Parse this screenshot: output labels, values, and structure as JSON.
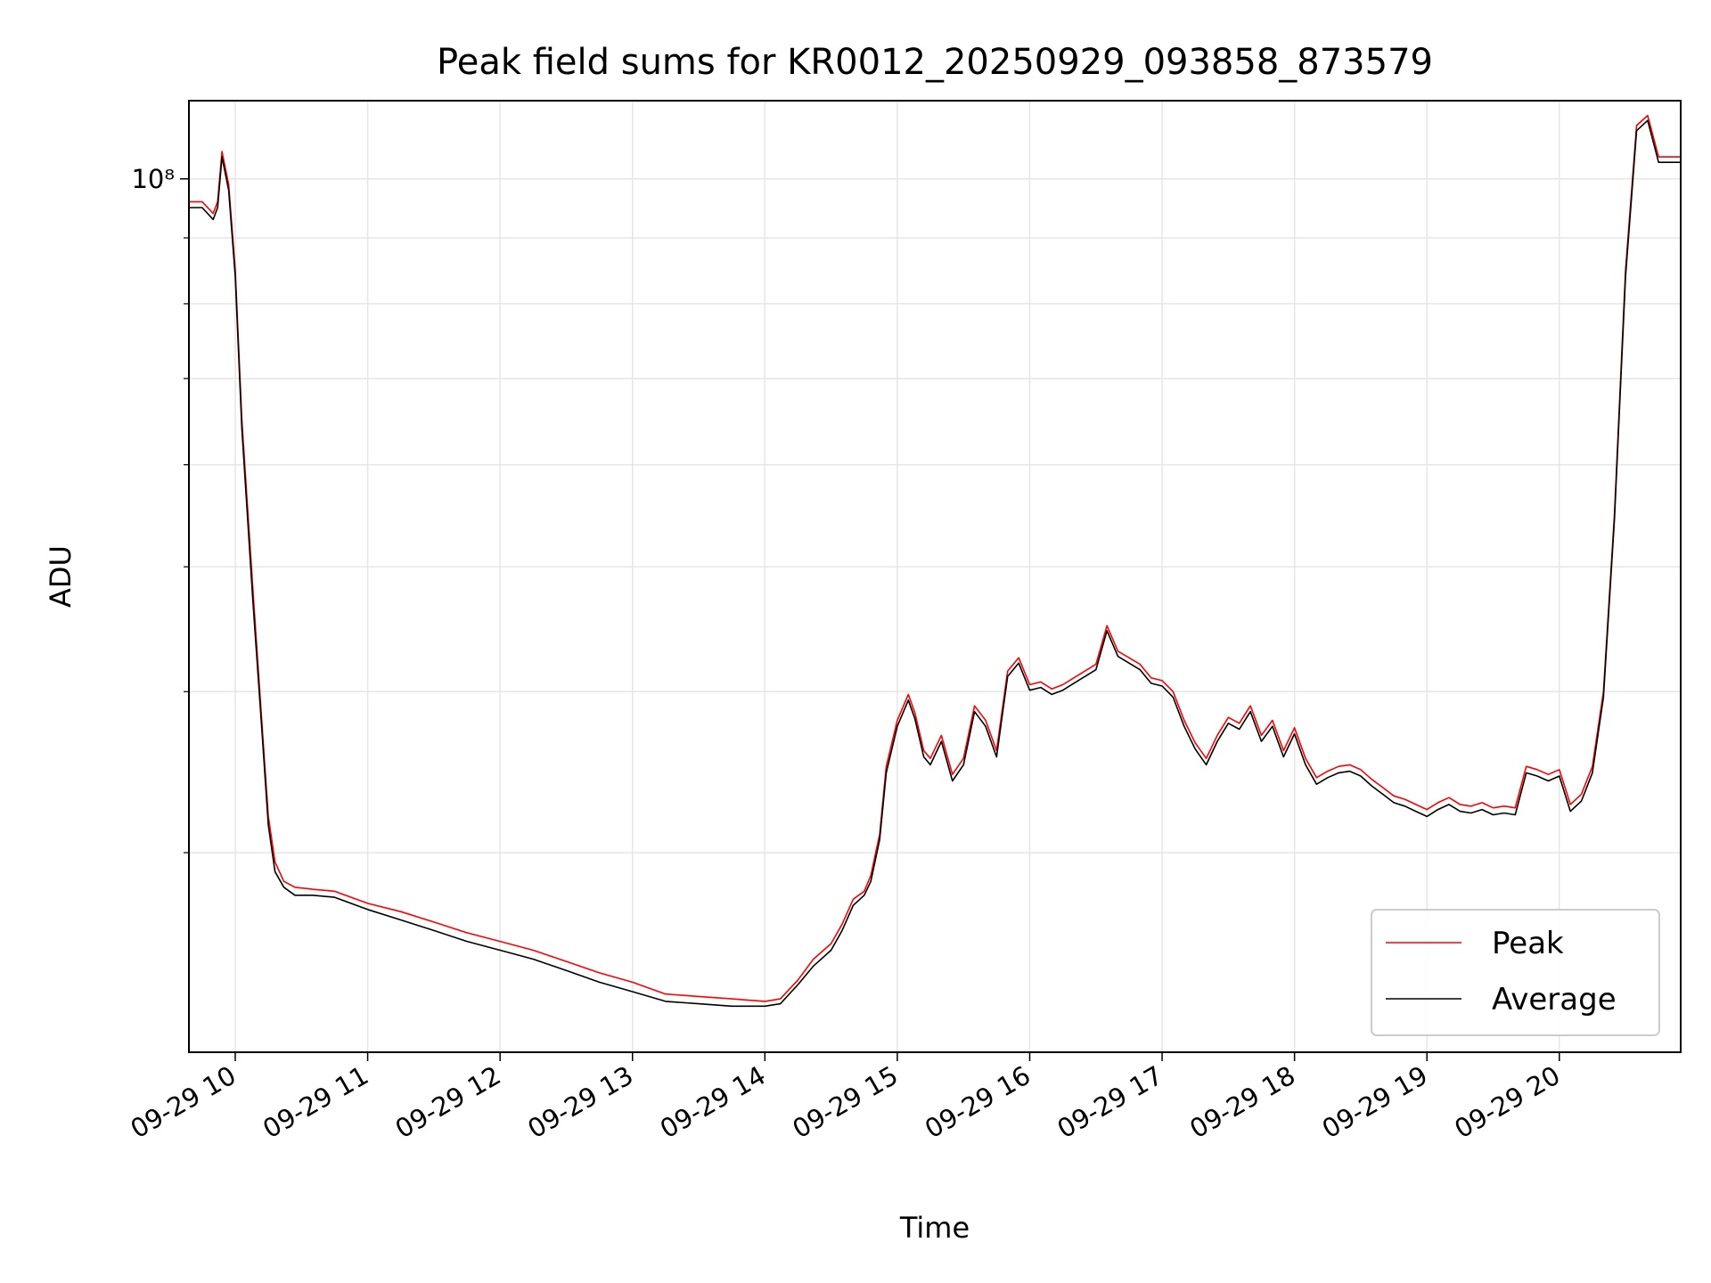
{
  "chart_data": {
    "type": "line",
    "title": "Peak field sums for KR0012_20250929_093858_873579",
    "xlabel": "Time",
    "ylabel": "ADU",
    "x_type": "datetime",
    "y_scale": "log",
    "grid": true,
    "legend_location": "lower right",
    "xlim": [
      "2025-09-29 09:39",
      "2025-09-29 20:55"
    ],
    "ylim": [
      21000000,
      115000000
    ],
    "x_ticks": [
      "2025-09-29 10:00",
      "2025-09-29 11:00",
      "2025-09-29 12:00",
      "2025-09-29 13:00",
      "2025-09-29 14:00",
      "2025-09-29 15:00",
      "2025-09-29 16:00",
      "2025-09-29 17:00",
      "2025-09-29 18:00",
      "2025-09-29 19:00",
      "2025-09-29 20:00"
    ],
    "x_tick_labels": [
      "09-29 10",
      "09-29 11",
      "09-29 12",
      "09-29 13",
      "09-29 14",
      "09-29 15",
      "09-29 16",
      "09-29 17",
      "09-29 18",
      "09-29 19",
      "09-29 20"
    ],
    "y_major_ticks": [
      100000000
    ],
    "y_major_tick_labels": [
      "10⁸"
    ],
    "y_minor_ticks": [
      30000000,
      40000000,
      50000000,
      60000000,
      70000000,
      80000000,
      90000000
    ],
    "x": [
      "2025-09-29 09:39",
      "2025-09-29 09:45",
      "2025-09-29 09:50",
      "2025-09-29 09:52",
      "2025-09-29 09:54",
      "2025-09-29 09:57",
      "2025-09-29 10:00",
      "2025-09-29 10:03",
      "2025-09-29 10:08",
      "2025-09-29 10:12",
      "2025-09-29 10:15",
      "2025-09-29 10:18",
      "2025-09-29 10:22",
      "2025-09-29 10:27",
      "2025-09-29 10:35",
      "2025-09-29 10:45",
      "2025-09-29 11:00",
      "2025-09-29 11:15",
      "2025-09-29 11:30",
      "2025-09-29 11:45",
      "2025-09-29 12:00",
      "2025-09-29 12:15",
      "2025-09-29 12:30",
      "2025-09-29 12:45",
      "2025-09-29 13:00",
      "2025-09-29 13:15",
      "2025-09-29 13:30",
      "2025-09-29 13:45",
      "2025-09-29 14:00",
      "2025-09-29 14:07",
      "2025-09-29 14:15",
      "2025-09-29 14:22",
      "2025-09-29 14:30",
      "2025-09-29 14:35",
      "2025-09-29 14:40",
      "2025-09-29 14:45",
      "2025-09-29 14:48",
      "2025-09-29 14:52",
      "2025-09-29 14:55",
      "2025-09-29 15:00",
      "2025-09-29 15:05",
      "2025-09-29 15:08",
      "2025-09-29 15:12",
      "2025-09-29 15:15",
      "2025-09-29 15:20",
      "2025-09-29 15:25",
      "2025-09-29 15:30",
      "2025-09-29 15:35",
      "2025-09-29 15:40",
      "2025-09-29 15:45",
      "2025-09-29 15:50",
      "2025-09-29 15:55",
      "2025-09-29 16:00",
      "2025-09-29 16:05",
      "2025-09-29 16:10",
      "2025-09-29 16:15",
      "2025-09-29 16:20",
      "2025-09-29 16:25",
      "2025-09-29 16:30",
      "2025-09-29 16:35",
      "2025-09-29 16:40",
      "2025-09-29 16:45",
      "2025-09-29 16:50",
      "2025-09-29 16:55",
      "2025-09-29 17:00",
      "2025-09-29 17:05",
      "2025-09-29 17:10",
      "2025-09-29 17:15",
      "2025-09-29 17:20",
      "2025-09-29 17:25",
      "2025-09-29 17:30",
      "2025-09-29 17:35",
      "2025-09-29 17:40",
      "2025-09-29 17:45",
      "2025-09-29 17:50",
      "2025-09-29 17:55",
      "2025-09-29 18:00",
      "2025-09-29 18:05",
      "2025-09-29 18:10",
      "2025-09-29 18:15",
      "2025-09-29 18:20",
      "2025-09-29 18:25",
      "2025-09-29 18:30",
      "2025-09-29 18:35",
      "2025-09-29 18:40",
      "2025-09-29 18:45",
      "2025-09-29 18:50",
      "2025-09-29 18:55",
      "2025-09-29 19:00",
      "2025-09-29 19:05",
      "2025-09-29 19:10",
      "2025-09-29 19:15",
      "2025-09-29 19:20",
      "2025-09-29 19:25",
      "2025-09-29 19:30",
      "2025-09-29 19:35",
      "2025-09-29 19:40",
      "2025-09-29 19:45",
      "2025-09-29 19:50",
      "2025-09-29 19:55",
      "2025-09-29 20:00",
      "2025-09-29 20:05",
      "2025-09-29 20:10",
      "2025-09-29 20:15",
      "2025-09-29 20:20",
      "2025-09-29 20:25",
      "2025-09-29 20:30",
      "2025-09-29 20:35",
      "2025-09-29 20:40",
      "2025-09-29 20:45",
      "2025-09-29 20:50",
      "2025-09-29 20:55"
    ],
    "series": [
      {
        "name": "Peak",
        "color": "#ff0000",
        "values": [
          96000000,
          96000000,
          94000000,
          96000000,
          105000000,
          99000000,
          85000000,
          65000000,
          48000000,
          38000000,
          32000000,
          29500000,
          28500000,
          28200000,
          28100000,
          28000000,
          27400000,
          27000000,
          26500000,
          26000000,
          25600000,
          25200000,
          24700000,
          24200000,
          23800000,
          23300000,
          23200000,
          23100000,
          23000000,
          23100000,
          23900000,
          24800000,
          25500000,
          26400000,
          27600000,
          28000000,
          28800000,
          31000000,
          35000000,
          38000000,
          39800000,
          38500000,
          36000000,
          35500000,
          37000000,
          34500000,
          35500000,
          39000000,
          38000000,
          36000000,
          41500000,
          42500000,
          40500000,
          40700000,
          40200000,
          40500000,
          41000000,
          41500000,
          42000000,
          45000000,
          43000000,
          42500000,
          42000000,
          41000000,
          40800000,
          40000000,
          38000000,
          36500000,
          35500000,
          37000000,
          38200000,
          37800000,
          39000000,
          37000000,
          38000000,
          36000000,
          37500000,
          35500000,
          34300000,
          34700000,
          35000000,
          35100000,
          34800000,
          34200000,
          33700000,
          33200000,
          33000000,
          32700000,
          32400000,
          32800000,
          33100000,
          32700000,
          32600000,
          32800000,
          32500000,
          32600000,
          32500000,
          35000000,
          34800000,
          34500000,
          34800000,
          32700000,
          33300000,
          35000000,
          40000000,
          55000000,
          85000000,
          110000000,
          112000000,
          104000000,
          104000000,
          104000000
        ]
      },
      {
        "name": "Average",
        "color": "#000000",
        "values": [
          95000000,
          95000000,
          93000000,
          95000000,
          104000000,
          98000000,
          84000000,
          64000000,
          47000000,
          37500000,
          31500000,
          29000000,
          28200000,
          27800000,
          27800000,
          27700000,
          27100000,
          26600000,
          26100000,
          25600000,
          25200000,
          24800000,
          24300000,
          23800000,
          23400000,
          23000000,
          22900000,
          22800000,
          22800000,
          22900000,
          23700000,
          24500000,
          25200000,
          26100000,
          27300000,
          27800000,
          28500000,
          30700000,
          34600000,
          37600000,
          39400000,
          38100000,
          35600000,
          35100000,
          36600000,
          34100000,
          35100000,
          38600000,
          37600000,
          35600000,
          41100000,
          42100000,
          40100000,
          40300000,
          39800000,
          40100000,
          40600000,
          41100000,
          41600000,
          44600000,
          42600000,
          42100000,
          41600000,
          40600000,
          40400000,
          39600000,
          37600000,
          36100000,
          35100000,
          36600000,
          37800000,
          37400000,
          38600000,
          36600000,
          37600000,
          35600000,
          37100000,
          35100000,
          33900000,
          34300000,
          34600000,
          34700000,
          34400000,
          33800000,
          33300000,
          32800000,
          32600000,
          32300000,
          32000000,
          32400000,
          32700000,
          32300000,
          32200000,
          32400000,
          32100000,
          32200000,
          32100000,
          34600000,
          34400000,
          34100000,
          34400000,
          32300000,
          32900000,
          34600000,
          39600000,
          54500000,
          84000000,
          109000000,
          111000000,
          103000000,
          103000000,
          103000000
        ]
      }
    ]
  }
}
